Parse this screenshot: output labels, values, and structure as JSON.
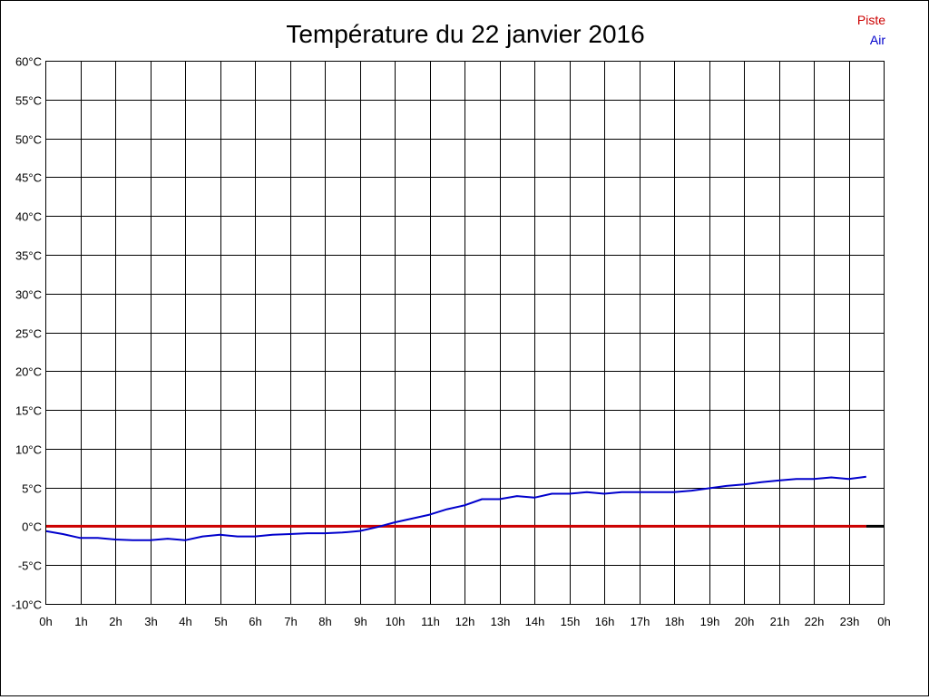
{
  "colors": {
    "background": "#ffffff",
    "grid": "#000000",
    "axis_text": "#000000",
    "title_text": "#000000"
  },
  "chart_data": {
    "type": "line",
    "title": "Température du 22 janvier 2016",
    "xlabel": "",
    "ylabel": "",
    "y_unit": "°C",
    "ylim": [
      -10,
      60
    ],
    "y_ticks": [
      -10,
      -5,
      0,
      5,
      10,
      15,
      20,
      25,
      30,
      35,
      40,
      45,
      50,
      55,
      60
    ],
    "y_tick_labels": [
      "-10°C",
      "-5°C",
      "0°C",
      "5°C",
      "10°C",
      "15°C",
      "20°C",
      "25°C",
      "30°C",
      "35°C",
      "40°C",
      "45°C",
      "50°C",
      "55°C",
      "60°C"
    ],
    "xlim": [
      0,
      24
    ],
    "x_ticks": [
      0,
      1,
      2,
      3,
      4,
      5,
      6,
      7,
      8,
      9,
      10,
      11,
      12,
      13,
      14,
      15,
      16,
      17,
      18,
      19,
      20,
      21,
      22,
      23,
      24
    ],
    "x_tick_labels": [
      "0h",
      "1h",
      "2h",
      "3h",
      "4h",
      "5h",
      "6h",
      "7h",
      "8h",
      "9h",
      "10h",
      "11h",
      "12h",
      "13h",
      "14h",
      "15h",
      "16h",
      "17h",
      "18h",
      "19h",
      "20h",
      "21h",
      "22h",
      "23h",
      "0h"
    ],
    "grid": true,
    "legend_position": "top-right",
    "series": [
      {
        "name": "Piste",
        "color": "#cc0000",
        "x": [
          0,
          23.5
        ],
        "y": [
          0,
          0
        ]
      },
      {
        "name": "Air",
        "color": "#0000cc",
        "x": [
          0,
          0.5,
          1,
          1.5,
          2,
          2.5,
          3,
          3.5,
          4,
          4.5,
          5,
          5.5,
          6,
          6.5,
          7,
          7.5,
          8,
          8.5,
          9,
          9.5,
          10,
          10.5,
          11,
          11.5,
          12,
          12.5,
          13,
          13.5,
          14,
          14.5,
          15,
          15.5,
          16,
          16.5,
          17,
          17.5,
          18,
          18.5,
          19,
          19.5,
          20,
          20.5,
          21,
          21.5,
          22,
          22.5,
          23,
          23.5
        ],
        "y": [
          -0.6,
          -1.0,
          -1.5,
          -1.5,
          -1.7,
          -1.8,
          -1.8,
          -1.6,
          -1.8,
          -1.3,
          -1.1,
          -1.3,
          -1.3,
          -1.1,
          -1.0,
          -0.9,
          -0.9,
          -0.8,
          -0.6,
          -0.1,
          0.5,
          1.0,
          1.5,
          2.2,
          2.7,
          3.5,
          3.5,
          3.9,
          3.7,
          4.2,
          4.2,
          4.4,
          4.2,
          4.4,
          4.4,
          4.4,
          4.4,
          4.6,
          4.9,
          5.2,
          5.4,
          5.7,
          5.9,
          6.1,
          6.1,
          6.3,
          6.1,
          6.4
        ]
      }
    ]
  }
}
